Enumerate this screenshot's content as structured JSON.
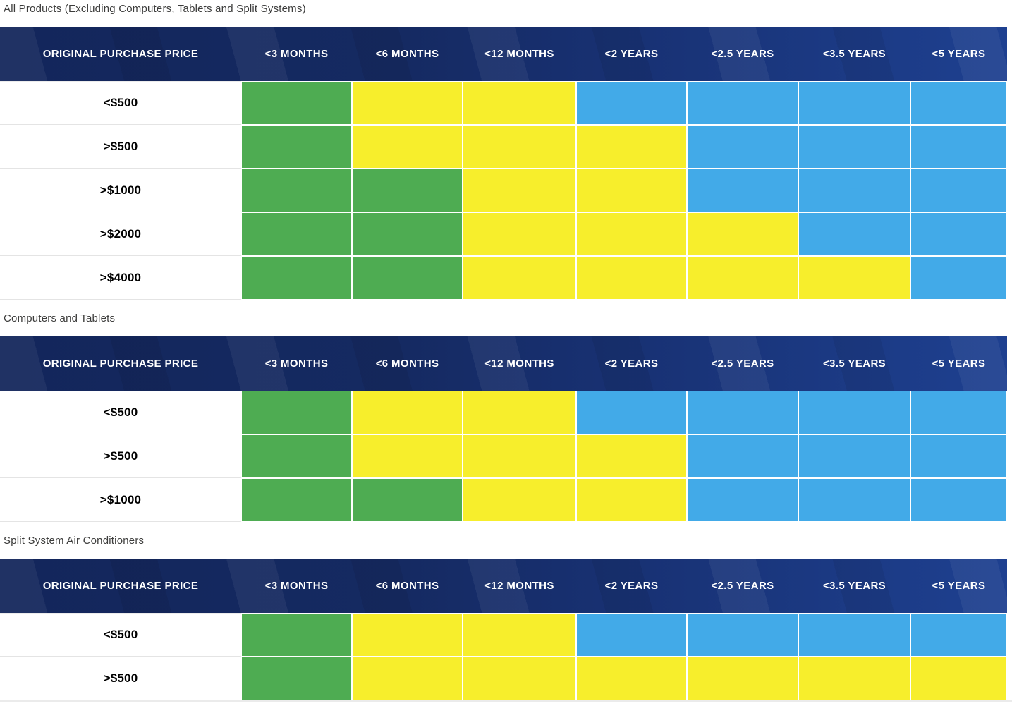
{
  "colors": {
    "green": "#4EAC52",
    "yellow": "#F7EE2C",
    "blue": "#42AAE8",
    "header_navy": "#13265B",
    "header_royal": "#1E4090",
    "title_text": "#3C3C3B",
    "label_text": "#000000"
  },
  "chart_data": [
    {
      "type": "heatmap",
      "title": "All Products (Excluding Computers, Tablets and Split Systems)",
      "columns": [
        "ORIGINAL PURCHASE PRICE",
        "<3 MONTHS",
        "<6 MONTHS",
        "<12 MONTHS",
        "<2 YEARS",
        "<2.5 YEARS",
        "<3.5 YEARS",
        "<5 YEARS"
      ],
      "rows": [
        {
          "label": "<$500",
          "cells": [
            "green",
            "yellow",
            "yellow",
            "blue",
            "blue",
            "blue",
            "blue"
          ]
        },
        {
          "label": ">$500",
          "cells": [
            "green",
            "yellow",
            "yellow",
            "yellow",
            "blue",
            "blue",
            "blue"
          ]
        },
        {
          "label": ">$1000",
          "cells": [
            "green",
            "green",
            "yellow",
            "yellow",
            "blue",
            "blue",
            "blue"
          ]
        },
        {
          "label": ">$2000",
          "cells": [
            "green",
            "green",
            "yellow",
            "yellow",
            "yellow",
            "blue",
            "blue"
          ]
        },
        {
          "label": ">$4000",
          "cells": [
            "green",
            "green",
            "yellow",
            "yellow",
            "yellow",
            "yellow",
            "blue"
          ]
        }
      ]
    },
    {
      "type": "heatmap",
      "title": "Computers and Tablets",
      "columns": [
        "ORIGINAL PURCHASE PRICE",
        "<3 MONTHS",
        "<6 MONTHS",
        "<12 MONTHS",
        "<2 YEARS",
        "<2.5 YEARS",
        "<3.5 YEARS",
        "<5 YEARS"
      ],
      "rows": [
        {
          "label": "<$500",
          "cells": [
            "green",
            "yellow",
            "yellow",
            "blue",
            "blue",
            "blue",
            "blue"
          ]
        },
        {
          "label": ">$500",
          "cells": [
            "green",
            "yellow",
            "yellow",
            "yellow",
            "blue",
            "blue",
            "blue"
          ]
        },
        {
          "label": ">$1000",
          "cells": [
            "green",
            "green",
            "yellow",
            "yellow",
            "blue",
            "blue",
            "blue"
          ]
        }
      ]
    },
    {
      "type": "heatmap",
      "title": "Split System Air Conditioners",
      "columns": [
        "ORIGINAL PURCHASE PRICE",
        "<3 MONTHS",
        "<6 MONTHS",
        "<12 MONTHS",
        "<2 YEARS",
        "<2.5 YEARS",
        "<3.5 YEARS",
        "<5 YEARS"
      ],
      "rows": [
        {
          "label": "<$500",
          "cells": [
            "green",
            "yellow",
            "yellow",
            "blue",
            "blue",
            "blue",
            "blue"
          ]
        },
        {
          "label": ">$500",
          "cells": [
            "green",
            "yellow",
            "yellow",
            "yellow",
            "yellow",
            "yellow",
            "yellow"
          ]
        }
      ]
    }
  ]
}
